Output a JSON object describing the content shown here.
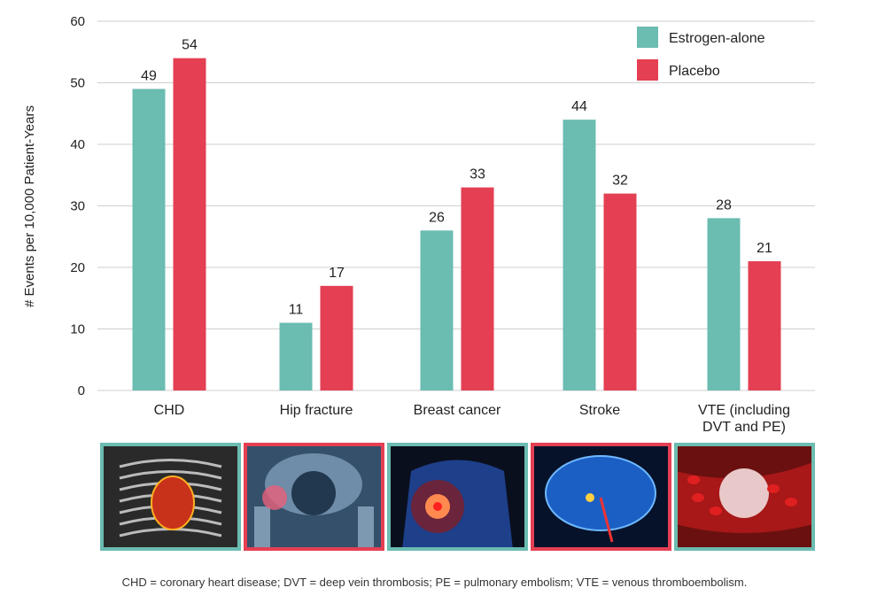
{
  "chart_data": {
    "type": "bar",
    "title": "",
    "xlabel": "",
    "ylabel": "# Events per 10,000 Patient-Years",
    "ylim": [
      0,
      60
    ],
    "yticks": [
      0,
      10,
      20,
      30,
      40,
      50,
      60
    ],
    "grid": true,
    "legend_placement": "top-right",
    "categories": [
      [
        "CHD"
      ],
      [
        "Hip fracture"
      ],
      [
        "Breast cancer"
      ],
      [
        "Stroke"
      ],
      [
        "VTE (including",
        "DVT and PE)"
      ]
    ],
    "series": [
      {
        "name": "Estrogen-alone",
        "color": "#6bbcb1",
        "values": [
          49,
          11,
          26,
          44,
          28
        ]
      },
      {
        "name": "Placebo",
        "color": "#e43f53",
        "values": [
          54,
          17,
          33,
          32,
          21
        ]
      }
    ]
  },
  "images": [
    {
      "icon": "heart-xray-icon",
      "border": "#6bbcb1"
    },
    {
      "icon": "hip-fracture-xray-icon",
      "border": "#e43f53"
    },
    {
      "icon": "breast-cancer-icon",
      "border": "#6bbcb1"
    },
    {
      "icon": "brain-stroke-icon",
      "border": "#e43f53"
    },
    {
      "icon": "blood-clot-icon",
      "border": "#6bbcb1"
    }
  ],
  "footnote": "CHD = coronary heart disease; DVT = deep vein thrombosis; PE = pulmonary embolism; VTE = venous thromboembolism."
}
